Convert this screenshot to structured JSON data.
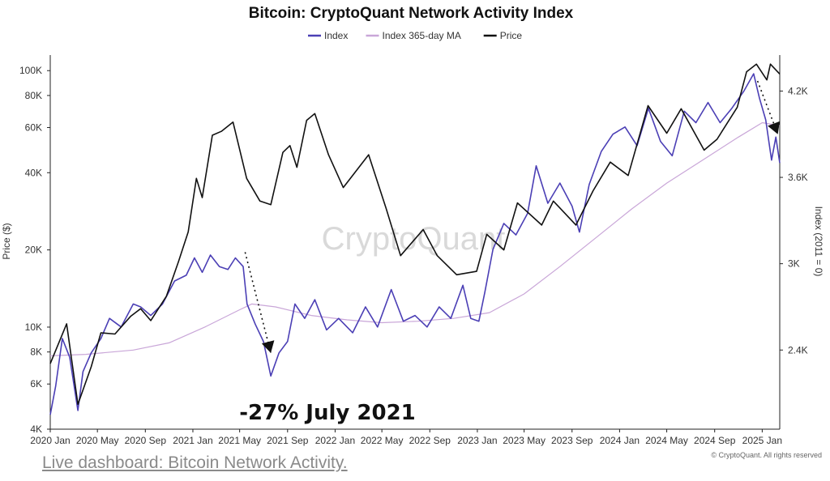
{
  "chart_data": {
    "type": "line",
    "title": "Bitcoin: CryptoQuant Network Activity Index",
    "ylabel_left": "Price ($)",
    "ylabel_right": "Index (2011 = 0)",
    "x_range": [
      "2020-01-01",
      "2025-02-15"
    ],
    "y_left_scale": "log",
    "y_left_range": [
      4000,
      115000
    ],
    "y_right_range": [
      1850,
      4450
    ],
    "x_ticks": [
      "2020 Jan",
      "2020 May",
      "2020 Sep",
      "2021 Jan",
      "2021 May",
      "2021 Sep",
      "2022 Jan",
      "2022 May",
      "2022 Sep",
      "2023 Jan",
      "2023 May",
      "2023 Sep",
      "2024 Jan",
      "2024 May",
      "2024 Sep",
      "2025 Jan"
    ],
    "y_left_ticks": [
      "100K",
      "80K",
      "60K",
      "40K",
      "20K",
      "10K",
      "8K",
      "6K",
      "4K"
    ],
    "y_right_ticks": [
      "4.2K",
      "3.6K",
      "3K",
      "2.4K"
    ],
    "legend_position": "top-center",
    "grid": false,
    "series": [
      {
        "name": "Index",
        "axis": "right",
        "color": "#4b3fb5",
        "points": [
          [
            "2020-01-01",
            1950
          ],
          [
            "2020-01-15",
            2150
          ],
          [
            "2020-02-01",
            2480
          ],
          [
            "2020-02-20",
            2350
          ],
          [
            "2020-03-12",
            1980
          ],
          [
            "2020-03-25",
            2250
          ],
          [
            "2020-04-15",
            2380
          ],
          [
            "2020-05-10",
            2480
          ],
          [
            "2020-06-01",
            2620
          ],
          [
            "2020-07-01",
            2560
          ],
          [
            "2020-08-01",
            2720
          ],
          [
            "2020-08-20",
            2700
          ],
          [
            "2020-09-15",
            2640
          ],
          [
            "2020-10-15",
            2720
          ],
          [
            "2020-11-15",
            2880
          ],
          [
            "2020-12-15",
            2920
          ],
          [
            "2021-01-05",
            3040
          ],
          [
            "2021-01-25",
            2940
          ],
          [
            "2021-02-15",
            3060
          ],
          [
            "2021-03-10",
            2980
          ],
          [
            "2021-04-01",
            2960
          ],
          [
            "2021-04-20",
            3040
          ],
          [
            "2021-05-10",
            2980
          ],
          [
            "2021-05-20",
            2720
          ],
          [
            "2021-06-10",
            2580
          ],
          [
            "2021-07-01",
            2460
          ],
          [
            "2021-07-20",
            2220
          ],
          [
            "2021-08-10",
            2380
          ],
          [
            "2021-09-01",
            2460
          ],
          [
            "2021-09-20",
            2720
          ],
          [
            "2021-10-15",
            2620
          ],
          [
            "2021-11-10",
            2750
          ],
          [
            "2021-12-10",
            2540
          ],
          [
            "2022-01-10",
            2620
          ],
          [
            "2022-02-15",
            2520
          ],
          [
            "2022-03-20",
            2700
          ],
          [
            "2022-04-20",
            2560
          ],
          [
            "2022-05-25",
            2820
          ],
          [
            "2022-06-25",
            2600
          ],
          [
            "2022-07-25",
            2640
          ],
          [
            "2022-08-25",
            2560
          ],
          [
            "2022-09-25",
            2700
          ],
          [
            "2022-10-25",
            2620
          ],
          [
            "2022-11-25",
            2850
          ],
          [
            "2022-12-15",
            2620
          ],
          [
            "2023-01-05",
            2600
          ],
          [
            "2023-01-20",
            2800
          ],
          [
            "2023-02-10",
            3100
          ],
          [
            "2023-03-10",
            3280
          ],
          [
            "2023-04-10",
            3200
          ],
          [
            "2023-05-10",
            3350
          ],
          [
            "2023-06-01",
            3680
          ],
          [
            "2023-07-01",
            3420
          ],
          [
            "2023-08-01",
            3560
          ],
          [
            "2023-09-01",
            3400
          ],
          [
            "2023-09-20",
            3220
          ],
          [
            "2023-10-15",
            3550
          ],
          [
            "2023-11-15",
            3780
          ],
          [
            "2023-12-15",
            3900
          ],
          [
            "2024-01-15",
            3950
          ],
          [
            "2024-02-15",
            3820
          ],
          [
            "2024-03-15",
            4080
          ],
          [
            "2024-04-15",
            3850
          ],
          [
            "2024-05-15",
            3750
          ],
          [
            "2024-06-15",
            4060
          ],
          [
            "2024-07-15",
            3980
          ],
          [
            "2024-08-15",
            4120
          ],
          [
            "2024-09-15",
            3980
          ],
          [
            "2024-10-15",
            4080
          ],
          [
            "2024-11-15",
            4200
          ],
          [
            "2024-12-10",
            4320
          ],
          [
            "2024-12-25",
            4150
          ],
          [
            "2025-01-10",
            4000
          ],
          [
            "2025-01-25",
            3720
          ],
          [
            "2025-02-05",
            3880
          ],
          [
            "2025-02-15",
            3700
          ]
        ]
      },
      {
        "name": "Index 365-day MA",
        "axis": "right",
        "color": "#c9a6d8",
        "points": [
          [
            "2020-01-01",
            2360
          ],
          [
            "2020-04-01",
            2370
          ],
          [
            "2020-08-01",
            2400
          ],
          [
            "2020-11-01",
            2450
          ],
          [
            "2021-02-01",
            2560
          ],
          [
            "2021-05-01",
            2680
          ],
          [
            "2021-06-01",
            2720
          ],
          [
            "2021-08-01",
            2700
          ],
          [
            "2021-11-01",
            2640
          ],
          [
            "2022-02-01",
            2610
          ],
          [
            "2022-05-01",
            2590
          ],
          [
            "2022-08-01",
            2600
          ],
          [
            "2022-11-01",
            2620
          ],
          [
            "2023-02-01",
            2660
          ],
          [
            "2023-05-01",
            2790
          ],
          [
            "2023-08-01",
            2980
          ],
          [
            "2023-11-01",
            3180
          ],
          [
            "2024-02-01",
            3380
          ],
          [
            "2024-05-01",
            3560
          ],
          [
            "2024-08-01",
            3720
          ],
          [
            "2024-11-01",
            3880
          ],
          [
            "2025-01-01",
            3980
          ],
          [
            "2025-02-15",
            3960
          ]
        ]
      },
      {
        "name": "Price",
        "axis": "left",
        "color": "#111111",
        "points": [
          [
            "2020-01-01",
            7200
          ],
          [
            "2020-02-12",
            10300
          ],
          [
            "2020-03-12",
            5000
          ],
          [
            "2020-04-15",
            7000
          ],
          [
            "2020-05-10",
            9500
          ],
          [
            "2020-06-15",
            9400
          ],
          [
            "2020-07-25",
            11000
          ],
          [
            "2020-08-20",
            11800
          ],
          [
            "2020-09-15",
            10600
          ],
          [
            "2020-10-25",
            13200
          ],
          [
            "2020-11-25",
            18000
          ],
          [
            "2020-12-20",
            23500
          ],
          [
            "2021-01-10",
            38000
          ],
          [
            "2021-01-25",
            32000
          ],
          [
            "2021-02-20",
            56000
          ],
          [
            "2021-03-15",
            58000
          ],
          [
            "2021-04-14",
            63000
          ],
          [
            "2021-05-19",
            38000
          ],
          [
            "2021-06-22",
            31000
          ],
          [
            "2021-07-20",
            30000
          ],
          [
            "2021-08-20",
            48000
          ],
          [
            "2021-09-07",
            51000
          ],
          [
            "2021-09-25",
            42000
          ],
          [
            "2021-10-20",
            64000
          ],
          [
            "2021-11-10",
            68000
          ],
          [
            "2021-12-15",
            47000
          ],
          [
            "2022-01-22",
            35000
          ],
          [
            "2022-03-28",
            47000
          ],
          [
            "2022-05-12",
            29000
          ],
          [
            "2022-06-18",
            19000
          ],
          [
            "2022-08-15",
            24000
          ],
          [
            "2022-09-20",
            19000
          ],
          [
            "2022-11-09",
            16000
          ],
          [
            "2022-12-30",
            16500
          ],
          [
            "2023-01-25",
            23000
          ],
          [
            "2023-03-10",
            20000
          ],
          [
            "2023-04-14",
            30500
          ],
          [
            "2023-06-15",
            25000
          ],
          [
            "2023-07-15",
            31000
          ],
          [
            "2023-09-11",
            25000
          ],
          [
            "2023-10-25",
            34000
          ],
          [
            "2023-12-08",
            44000
          ],
          [
            "2024-01-23",
            39000
          ],
          [
            "2024-03-14",
            73000
          ],
          [
            "2024-05-01",
            57000
          ],
          [
            "2024-06-07",
            71000
          ],
          [
            "2024-08-05",
            49000
          ],
          [
            "2024-09-07",
            54000
          ],
          [
            "2024-10-29",
            72000
          ],
          [
            "2024-11-22",
            99000
          ],
          [
            "2024-12-17",
            106000
          ],
          [
            "2025-01-13",
            92000
          ],
          [
            "2025-01-22",
            106000
          ],
          [
            "2025-02-15",
            97000
          ]
        ]
      }
    ],
    "annotations": [
      {
        "text": "-27% July 2021",
        "arrow_from": [
          "2021-05-15",
          3080
        ],
        "arrow_to": [
          "2021-07-20",
          2380
        ]
      },
      {
        "text": "",
        "arrow_from": [
          "2024-12-20",
          4270
        ],
        "arrow_to": [
          "2025-02-10",
          3900
        ]
      }
    ]
  },
  "watermark": "CryptoQuant",
  "footer": {
    "link_text": "Live dashboard: Bitcoin Network Activity.",
    "copyright": "© CryptoQuant. All rights reserved"
  }
}
